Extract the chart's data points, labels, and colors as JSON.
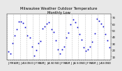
{
  "title": "Milwaukee Weather Outdoor Temperature",
  "subtitle": "Monthly Low",
  "ylim": [
    5,
    75
  ],
  "yticks": [
    10,
    20,
    30,
    40,
    50,
    60,
    70
  ],
  "ytick_labels": [
    "10",
    "20",
    "30",
    "40",
    "50",
    "60",
    "70"
  ],
  "num_years": 4,
  "dot_color": "#0000CC",
  "dot_size": 1.2,
  "grid_color": "#BBBBBB",
  "bg_color": "#FFFFFF",
  "outer_bg": "#E8E8E8",
  "title_color": "#000000",
  "title_fontsize": 3.8,
  "tick_fontsize": 2.8,
  "base_monthly_lows": [
    17,
    20,
    29,
    39,
    49,
    58,
    64,
    63,
    55,
    44,
    33,
    22
  ],
  "noise_scale": 3.0,
  "random_seed": 17
}
